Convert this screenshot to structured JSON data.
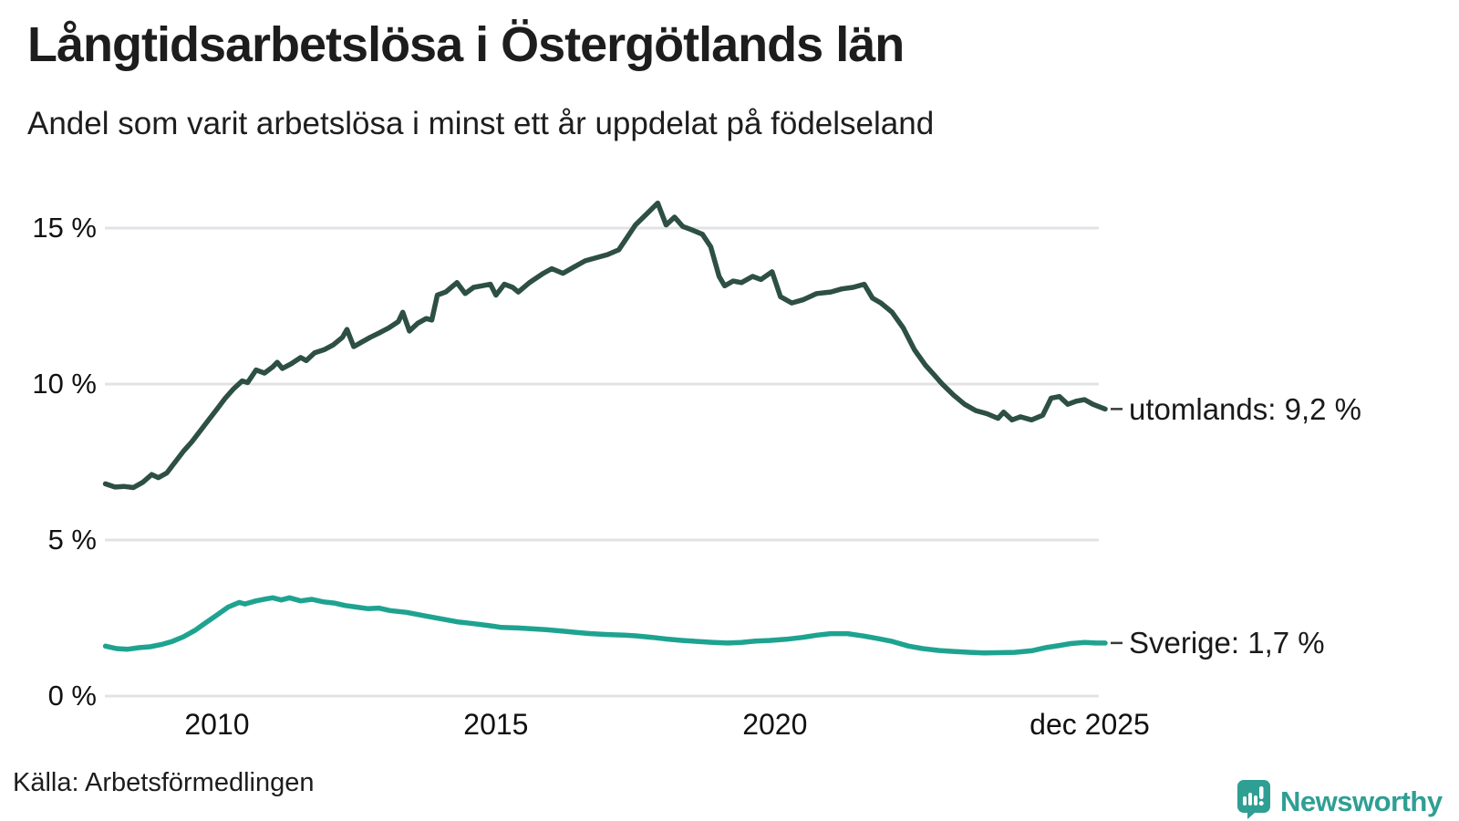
{
  "header": {
    "title": "Långtidsarbetslösa i Östergötlands län",
    "subtitle": "Andel som varit arbetslösa i minst ett år uppdelat på födelseland"
  },
  "footer": {
    "source": "Källa: Arbetsförmedlingen",
    "logo_text": "Newsworthy"
  },
  "colors": {
    "utomlands_line": "#2d4f44",
    "sverige_line": "#1ea390",
    "gridline": "#e3e3e7",
    "text": "#1a1a1a",
    "logo": "#2f9f94",
    "connector_dash": "#3a3a3a"
  },
  "chart_data": {
    "type": "line",
    "title": "Långtidsarbetslösa i Östergötlands län",
    "subtitle": "Andel som varit arbetslösa i minst ett år uppdelat på födelseland",
    "source": "Källa: Arbetsförmedlingen",
    "unit": "%",
    "grid": "horizontal-only",
    "legend_position": "right-end-labels",
    "x_axis": {
      "range": [
        2008.0,
        2025.92
      ],
      "ticks": [
        {
          "label": "2010",
          "year": 2010.0
        },
        {
          "label": "2015",
          "year": 2015.0
        },
        {
          "label": "2020",
          "year": 2020.0
        },
        {
          "label": "dec 2025",
          "year": 2025.92
        }
      ]
    },
    "y_axis": {
      "range": [
        0,
        16.5
      ],
      "ticks": [
        {
          "label": "15 %",
          "value": 15
        },
        {
          "label": "10 %",
          "value": 10
        },
        {
          "label": "5 %",
          "value": 5
        },
        {
          "label": "0 %",
          "value": 0
        }
      ]
    },
    "series": [
      {
        "name": "utomlands",
        "end_label": "utomlands: 9,2 %",
        "last_value": "9,2 %",
        "color": "#2d4f44",
        "points": [
          [
            2008.0,
            6.8
          ],
          [
            2008.17,
            6.7
          ],
          [
            2008.33,
            6.72
          ],
          [
            2008.5,
            6.68
          ],
          [
            2008.67,
            6.85
          ],
          [
            2008.83,
            7.1
          ],
          [
            2008.95,
            7.0
          ],
          [
            2009.1,
            7.15
          ],
          [
            2009.25,
            7.5
          ],
          [
            2009.4,
            7.85
          ],
          [
            2009.55,
            8.15
          ],
          [
            2009.7,
            8.5
          ],
          [
            2009.85,
            8.85
          ],
          [
            2010.0,
            9.2
          ],
          [
            2010.15,
            9.55
          ],
          [
            2010.3,
            9.85
          ],
          [
            2010.45,
            10.1
          ],
          [
            2010.55,
            10.05
          ],
          [
            2010.7,
            10.45
          ],
          [
            2010.85,
            10.35
          ],
          [
            2011.0,
            10.55
          ],
          [
            2011.08,
            10.7
          ],
          [
            2011.17,
            10.5
          ],
          [
            2011.33,
            10.65
          ],
          [
            2011.5,
            10.85
          ],
          [
            2011.6,
            10.75
          ],
          [
            2011.75,
            11.0
          ],
          [
            2011.92,
            11.1
          ],
          [
            2012.08,
            11.25
          ],
          [
            2012.25,
            11.5
          ],
          [
            2012.33,
            11.75
          ],
          [
            2012.45,
            11.2
          ],
          [
            2012.6,
            11.35
          ],
          [
            2012.75,
            11.5
          ],
          [
            2012.92,
            11.65
          ],
          [
            2013.08,
            11.8
          ],
          [
            2013.25,
            12.0
          ],
          [
            2013.33,
            12.3
          ],
          [
            2013.45,
            11.7
          ],
          [
            2013.6,
            11.95
          ],
          [
            2013.75,
            12.1
          ],
          [
            2013.85,
            12.05
          ],
          [
            2013.95,
            12.85
          ],
          [
            2014.1,
            12.95
          ],
          [
            2014.2,
            13.1
          ],
          [
            2014.3,
            13.25
          ],
          [
            2014.45,
            12.9
          ],
          [
            2014.6,
            13.1
          ],
          [
            2014.75,
            13.15
          ],
          [
            2014.9,
            13.2
          ],
          [
            2015.0,
            12.85
          ],
          [
            2015.15,
            13.2
          ],
          [
            2015.3,
            13.1
          ],
          [
            2015.4,
            12.95
          ],
          [
            2015.6,
            13.25
          ],
          [
            2015.85,
            13.55
          ],
          [
            2016.0,
            13.7
          ],
          [
            2016.2,
            13.55
          ],
          [
            2016.4,
            13.75
          ],
          [
            2016.6,
            13.95
          ],
          [
            2016.8,
            14.05
          ],
          [
            2017.0,
            14.15
          ],
          [
            2017.2,
            14.3
          ],
          [
            2017.35,
            14.7
          ],
          [
            2017.5,
            15.1
          ],
          [
            2017.7,
            15.45
          ],
          [
            2017.9,
            15.8
          ],
          [
            2018.05,
            15.1
          ],
          [
            2018.2,
            15.35
          ],
          [
            2018.35,
            15.05
          ],
          [
            2018.5,
            14.95
          ],
          [
            2018.7,
            14.8
          ],
          [
            2018.85,
            14.4
          ],
          [
            2019.0,
            13.45
          ],
          [
            2019.1,
            13.15
          ],
          [
            2019.25,
            13.3
          ],
          [
            2019.4,
            13.25
          ],
          [
            2019.6,
            13.45
          ],
          [
            2019.75,
            13.35
          ],
          [
            2019.95,
            13.6
          ],
          [
            2020.1,
            12.8
          ],
          [
            2020.3,
            12.6
          ],
          [
            2020.5,
            12.7
          ],
          [
            2020.75,
            12.9
          ],
          [
            2021.0,
            12.95
          ],
          [
            2021.2,
            13.05
          ],
          [
            2021.4,
            13.1
          ],
          [
            2021.6,
            13.2
          ],
          [
            2021.75,
            12.75
          ],
          [
            2021.9,
            12.6
          ],
          [
            2022.1,
            12.3
          ],
          [
            2022.3,
            11.8
          ],
          [
            2022.5,
            11.1
          ],
          [
            2022.7,
            10.6
          ],
          [
            2022.85,
            10.3
          ],
          [
            2023.0,
            10.0
          ],
          [
            2023.2,
            9.65
          ],
          [
            2023.4,
            9.35
          ],
          [
            2023.6,
            9.15
          ],
          [
            2023.8,
            9.05
          ],
          [
            2024.0,
            8.9
          ],
          [
            2024.1,
            9.1
          ],
          [
            2024.25,
            8.85
          ],
          [
            2024.4,
            8.95
          ],
          [
            2024.6,
            8.85
          ],
          [
            2024.8,
            9.0
          ],
          [
            2024.95,
            9.55
          ],
          [
            2025.1,
            9.6
          ],
          [
            2025.25,
            9.35
          ],
          [
            2025.4,
            9.45
          ],
          [
            2025.55,
            9.5
          ],
          [
            2025.7,
            9.35
          ],
          [
            2025.92,
            9.2
          ]
        ]
      },
      {
        "name": "Sverige",
        "end_label": "Sverige: 1,7 %",
        "last_value": "1,7 %",
        "color": "#1ea390",
        "points": [
          [
            2008.0,
            1.6
          ],
          [
            2008.2,
            1.52
          ],
          [
            2008.4,
            1.5
          ],
          [
            2008.6,
            1.55
          ],
          [
            2008.8,
            1.58
          ],
          [
            2009.0,
            1.65
          ],
          [
            2009.2,
            1.75
          ],
          [
            2009.4,
            1.9
          ],
          [
            2009.6,
            2.1
          ],
          [
            2009.8,
            2.35
          ],
          [
            2010.0,
            2.6
          ],
          [
            2010.2,
            2.85
          ],
          [
            2010.4,
            3.0
          ],
          [
            2010.5,
            2.95
          ],
          [
            2010.7,
            3.05
          ],
          [
            2010.9,
            3.12
          ],
          [
            2011.0,
            3.15
          ],
          [
            2011.15,
            3.08
          ],
          [
            2011.3,
            3.15
          ],
          [
            2011.5,
            3.05
          ],
          [
            2011.7,
            3.1
          ],
          [
            2011.9,
            3.02
          ],
          [
            2012.1,
            2.98
          ],
          [
            2012.3,
            2.9
          ],
          [
            2012.5,
            2.85
          ],
          [
            2012.7,
            2.8
          ],
          [
            2012.9,
            2.82
          ],
          [
            2013.1,
            2.74
          ],
          [
            2013.4,
            2.68
          ],
          [
            2013.7,
            2.58
          ],
          [
            2014.0,
            2.48
          ],
          [
            2014.3,
            2.38
          ],
          [
            2014.6,
            2.32
          ],
          [
            2014.9,
            2.25
          ],
          [
            2015.1,
            2.2
          ],
          [
            2015.4,
            2.18
          ],
          [
            2015.7,
            2.15
          ],
          [
            2015.9,
            2.13
          ],
          [
            2016.2,
            2.08
          ],
          [
            2016.5,
            2.03
          ],
          [
            2016.7,
            2.0
          ],
          [
            2017.0,
            1.97
          ],
          [
            2017.3,
            1.95
          ],
          [
            2017.5,
            1.93
          ],
          [
            2017.8,
            1.88
          ],
          [
            2018.1,
            1.82
          ],
          [
            2018.35,
            1.78
          ],
          [
            2018.6,
            1.75
          ],
          [
            2018.9,
            1.72
          ],
          [
            2019.15,
            1.7
          ],
          [
            2019.4,
            1.72
          ],
          [
            2019.65,
            1.76
          ],
          [
            2019.9,
            1.78
          ],
          [
            2020.2,
            1.82
          ],
          [
            2020.5,
            1.88
          ],
          [
            2020.75,
            1.95
          ],
          [
            2021.0,
            2.0
          ],
          [
            2021.3,
            2.0
          ],
          [
            2021.6,
            1.92
          ],
          [
            2021.85,
            1.84
          ],
          [
            2022.1,
            1.75
          ],
          [
            2022.4,
            1.6
          ],
          [
            2022.65,
            1.52
          ],
          [
            2022.95,
            1.46
          ],
          [
            2023.2,
            1.43
          ],
          [
            2023.5,
            1.4
          ],
          [
            2023.75,
            1.38
          ],
          [
            2024.0,
            1.39
          ],
          [
            2024.3,
            1.4
          ],
          [
            2024.6,
            1.45
          ],
          [
            2024.85,
            1.55
          ],
          [
            2025.1,
            1.62
          ],
          [
            2025.3,
            1.68
          ],
          [
            2025.55,
            1.72
          ],
          [
            2025.75,
            1.7
          ],
          [
            2025.92,
            1.7
          ]
        ]
      }
    ]
  }
}
